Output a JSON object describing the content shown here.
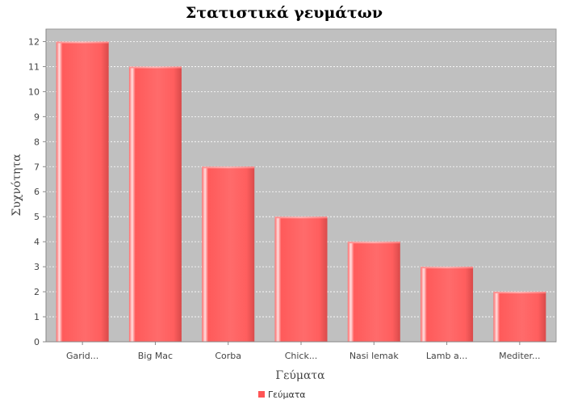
{
  "chart_data": {
    "type": "bar",
    "title": "Στατιστικά γευμάτων",
    "xlabel": "Γεύματα",
    "ylabel": "Συχνότητα",
    "categories": [
      "Garid...",
      "Big Mac",
      "Corba",
      "Chick...",
      "Nasi lemak",
      "Lamb a...",
      "Mediter..."
    ],
    "series": [
      {
        "name": "Γεύματα",
        "values": [
          12,
          11,
          7,
          5,
          4,
          3,
          2
        ]
      }
    ],
    "ylim": [
      0,
      12.5
    ],
    "yticks": [
      "0",
      "1",
      "2",
      "3",
      "4",
      "5",
      "6",
      "7",
      "8",
      "9",
      "10",
      "11",
      "12"
    ],
    "grid": true,
    "legend_position": "bottom-center",
    "colors": {
      "bar": "#ff5555",
      "bar_light": "#ffe0e0",
      "bar_dark": "#d94a4a",
      "plot_background": "#c0c0c0",
      "gridline": "#ffffff",
      "axis_text": "#444444",
      "title_text": "#000000"
    }
  }
}
